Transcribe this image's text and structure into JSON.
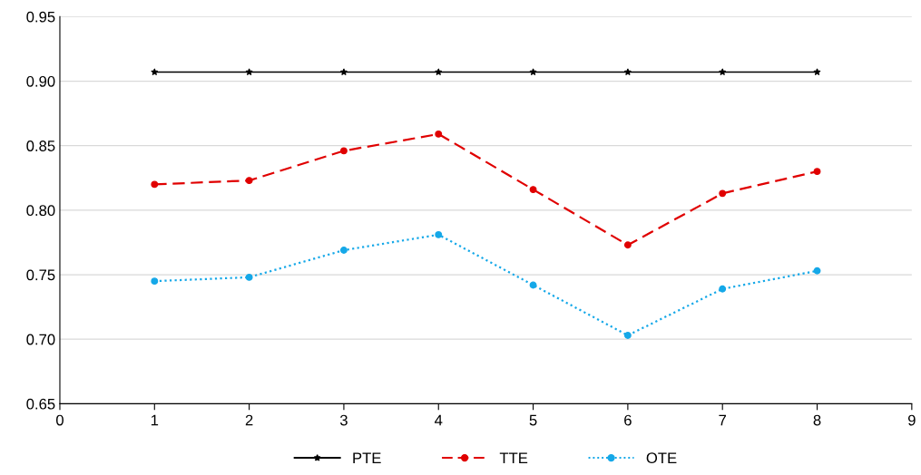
{
  "chart_data": {
    "type": "line",
    "x": [
      1,
      2,
      3,
      4,
      5,
      6,
      7,
      8
    ],
    "series": [
      {
        "name": "PTE",
        "color": "#000000",
        "values": [
          0.907,
          0.907,
          0.907,
          0.907,
          0.907,
          0.907,
          0.907,
          0.907
        ],
        "marker": "star",
        "line_style": "solid"
      },
      {
        "name": "TTE",
        "color": "#e00000",
        "values": [
          0.82,
          0.823,
          0.846,
          0.859,
          0.816,
          0.773,
          0.813,
          0.83
        ],
        "marker": "circle",
        "line_style": "dashed"
      },
      {
        "name": "OTE",
        "color": "#15a8e8",
        "values": [
          0.745,
          0.748,
          0.769,
          0.781,
          0.742,
          0.703,
          0.739,
          0.753
        ],
        "marker": "circle",
        "line_style": "dotted"
      }
    ],
    "xlim": [
      0,
      9
    ],
    "xticks": [
      0,
      1,
      2,
      3,
      4,
      5,
      6,
      7,
      8,
      9
    ],
    "ylim": [
      0.65,
      0.95
    ],
    "yticks": [
      {
        "value": 0.65,
        "label": "0.65"
      },
      {
        "value": 0.7,
        "label": "0.70"
      },
      {
        "value": 0.75,
        "label": "0.75"
      },
      {
        "value": 0.8,
        "label": "0.80"
      },
      {
        "value": 0.85,
        "label": "0.85"
      },
      {
        "value": 0.9,
        "label": "0.90"
      },
      {
        "value": 0.95,
        "label": "0.95"
      }
    ],
    "grid": "y",
    "legend": "bottom"
  }
}
